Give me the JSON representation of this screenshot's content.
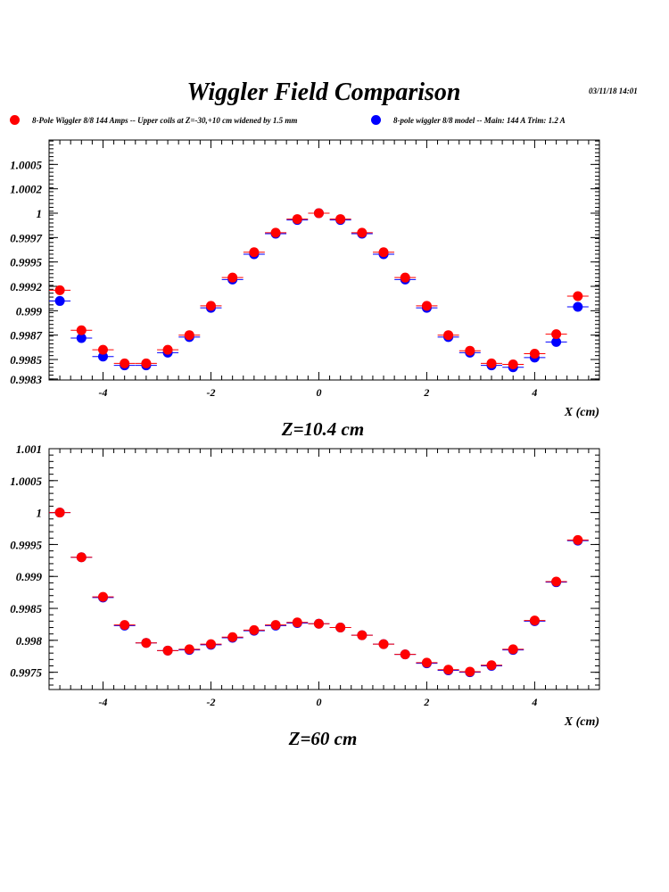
{
  "title": "Wiggler Field Comparison",
  "date": "03/11/18   14:01",
  "legend": [
    {
      "label": "8-Pole Wiggler 8/8 144 Amps -- Upper coils at Z=-30,+10 cm widened by 1.5 mm",
      "color": "#ff0000"
    },
    {
      "label": "8-pole wiggler 8/8 model --  Main: 144 A    Trim: 1.2 A",
      "color": "#0000ff"
    }
  ],
  "chart_data": [
    {
      "type": "scatter",
      "title": "Z=10.4 cm",
      "xlabel": "X (cm)",
      "ylabel": "",
      "xlim": [
        -5,
        5.2
      ],
      "ylim": [
        0.99829,
        1.00075
      ],
      "xticks": [
        -4,
        -2,
        0,
        2,
        4
      ],
      "xtick_labels": [
        "-4",
        "-2",
        "0",
        "2",
        "4"
      ],
      "yticks": [
        0.9983,
        0.9985,
        0.99875,
        0.999,
        0.99925,
        0.9995,
        0.99975,
        1.0,
        1.00025,
        1.0005
      ],
      "ytick_labels": [
        "0.9983",
        "0.9985",
        "0.9987",
        "0.999",
        "0.9992",
        "0.9995",
        "0.9997",
        "1",
        "1.0002",
        "1.0005"
      ],
      "grid": false,
      "x": [
        -4.8,
        -4.4,
        -4.0,
        -3.6,
        -3.2,
        -2.8,
        -2.4,
        -2.0,
        -1.6,
        -1.2,
        -0.8,
        -0.4,
        0.0,
        0.4,
        0.8,
        1.2,
        1.6,
        2.0,
        2.4,
        2.8,
        3.2,
        3.6,
        4.0,
        4.4,
        4.8
      ],
      "series": [
        {
          "color": "#0000ff",
          "values": [
            0.9991,
            0.99872,
            0.99853,
            0.99844,
            0.99844,
            0.99857,
            0.99873,
            0.99903,
            0.99932,
            0.99958,
            0.99979,
            0.99993,
            1.0,
            0.99993,
            0.99979,
            0.99958,
            0.99932,
            0.99903,
            0.99873,
            0.99857,
            0.99844,
            0.99842,
            0.99852,
            0.99868,
            0.99904
          ]
        },
        {
          "color": "#ff0000",
          "values": [
            0.99921,
            0.9988,
            0.9986,
            0.99846,
            0.99846,
            0.9986,
            0.99875,
            0.99905,
            0.99934,
            0.9996,
            0.9998,
            0.99994,
            1.0,
            0.99994,
            0.9998,
            0.9996,
            0.99934,
            0.99905,
            0.99875,
            0.99859,
            0.99846,
            0.99845,
            0.99856,
            0.99876,
            0.99915
          ]
        }
      ]
    },
    {
      "type": "scatter",
      "title": "Z=60 cm",
      "xlabel": "X (cm)",
      "ylabel": "",
      "xlim": [
        -5,
        5.2
      ],
      "ylim": [
        0.99723,
        1.001
      ],
      "xticks": [
        -4,
        -2,
        0,
        2,
        4
      ],
      "xtick_labels": [
        "-4",
        "-2",
        "0",
        "2",
        "4"
      ],
      "yticks": [
        0.9975,
        0.998,
        0.9985,
        0.999,
        0.9995,
        1.0,
        1.0005,
        1.001
      ],
      "ytick_labels": [
        "0.9975",
        "0.998",
        "0.9985",
        "0.999",
        "0.9995",
        "1",
        "1.0005",
        "1.001"
      ],
      "grid": false,
      "x": [
        -4.8,
        -4.4,
        -4.0,
        -3.6,
        -3.2,
        -2.8,
        -2.4,
        -2.0,
        -1.6,
        -1.2,
        -0.8,
        -0.4,
        0.0,
        0.4,
        0.8,
        1.2,
        1.6,
        2.0,
        2.4,
        2.8,
        3.2,
        3.6,
        4.0,
        4.4,
        4.8
      ],
      "series": [
        {
          "color": "#0000ff",
          "values": [
            1.0,
            0.9993,
            0.99867,
            0.99823,
            0.99796,
            0.99784,
            0.99785,
            0.99793,
            0.99804,
            0.99815,
            0.99823,
            0.99827,
            0.99826,
            0.9982,
            0.99808,
            0.99794,
            0.99778,
            0.99764,
            0.99753,
            0.9975,
            0.9976,
            0.99785,
            0.9983,
            0.99891,
            0.99956
          ]
        },
        {
          "color": "#ff0000",
          "values": [
            1.0,
            0.9993,
            0.99868,
            0.99824,
            0.99796,
            0.99784,
            0.99786,
            0.99794,
            0.99805,
            0.99816,
            0.99824,
            0.99828,
            0.99826,
            0.9982,
            0.99808,
            0.99794,
            0.99778,
            0.99765,
            0.99754,
            0.99751,
            0.99761,
            0.99786,
            0.99831,
            0.99892,
            0.99957
          ]
        }
      ]
    }
  ]
}
